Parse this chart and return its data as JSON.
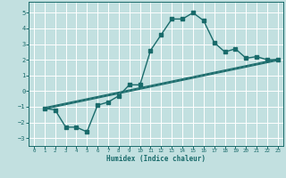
{
  "xlabel": "Humidex (Indice chaleur)",
  "bg_color": "#c2e0e0",
  "grid_color": "#ffffff",
  "line_color": "#1a6b6b",
  "xlim": [
    -0.5,
    23.5
  ],
  "ylim": [
    -3.5,
    5.7
  ],
  "yticks": [
    -3,
    -2,
    -1,
    0,
    1,
    2,
    3,
    4,
    5
  ],
  "xticks": [
    0,
    1,
    2,
    3,
    4,
    5,
    6,
    7,
    8,
    9,
    10,
    11,
    12,
    13,
    14,
    15,
    16,
    17,
    18,
    19,
    20,
    21,
    22,
    23
  ],
  "curve1_x": [
    1,
    2,
    3,
    4,
    5,
    6,
    7,
    8,
    9,
    10,
    11,
    12,
    13,
    14,
    15,
    16,
    17,
    18,
    19,
    20,
    21,
    22,
    23
  ],
  "curve1_y": [
    -1.1,
    -1.2,
    -2.3,
    -2.3,
    -2.6,
    -0.9,
    -0.7,
    -0.3,
    0.4,
    0.4,
    2.6,
    3.6,
    4.6,
    4.6,
    5.0,
    4.5,
    3.1,
    2.5,
    2.7,
    2.1,
    2.2,
    2.0,
    2.0
  ],
  "line1_x": [
    1,
    23
  ],
  "line1_y": [
    -1.05,
    2.05
  ],
  "line2_x": [
    1,
    23
  ],
  "line2_y": [
    -1.1,
    2.0
  ],
  "line3_x": [
    1,
    23
  ],
  "line3_y": [
    -1.15,
    1.95
  ]
}
